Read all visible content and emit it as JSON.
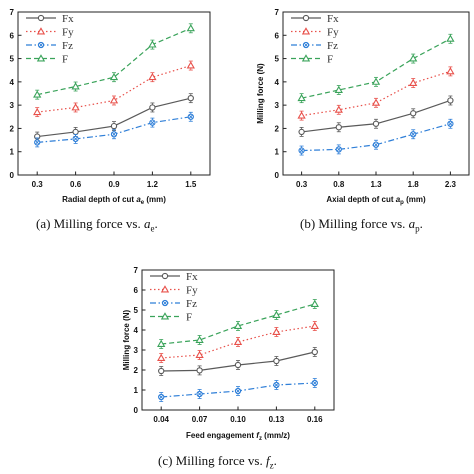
{
  "chart_data": [
    {
      "type": "line",
      "caption": {
        "prefix": "(a) Milling force vs. ",
        "var": "a",
        "sub": "e",
        "suffix": "."
      },
      "xlabel": {
        "prefix": "Radial depth of cut ",
        "var": "a",
        "sub": "e",
        "suffix": " (mm)"
      },
      "ylabel": "",
      "categories": [
        "0.3",
        "0.6",
        "0.9",
        "1.2",
        "1.5"
      ],
      "ylim": [
        0,
        7
      ],
      "yticks": [
        "0",
        "1",
        "2",
        "3",
        "4",
        "5",
        "6",
        "7"
      ],
      "legend": "top-left",
      "series": [
        {
          "name": "Fx",
          "values": [
            1.65,
            1.85,
            2.1,
            2.9,
            3.3
          ]
        },
        {
          "name": "Fy",
          "values": [
            2.7,
            2.9,
            3.2,
            4.2,
            4.7
          ]
        },
        {
          "name": "Fz",
          "values": [
            1.4,
            1.55,
            1.75,
            2.25,
            2.5
          ]
        },
        {
          "name": "F",
          "values": [
            3.45,
            3.8,
            4.2,
            5.6,
            6.3
          ]
        }
      ]
    },
    {
      "type": "line",
      "caption": {
        "prefix": "(b) Milling force vs. ",
        "var": "a",
        "sub": "p",
        "suffix": "."
      },
      "xlabel": {
        "prefix": "Axial depth of cut ",
        "var": "a",
        "sub": "p",
        "suffix": " (mm)"
      },
      "ylabel": "Milling force (N)",
      "categories": [
        "0.3",
        "0.8",
        "1.3",
        "1.8",
        "2.3"
      ],
      "ylim": [
        0,
        7
      ],
      "yticks": [
        "0",
        "1",
        "2",
        "3",
        "4",
        "5",
        "6",
        "7"
      ],
      "legend": "top-left",
      "series": [
        {
          "name": "Fx",
          "values": [
            1.85,
            2.05,
            2.2,
            2.65,
            3.2
          ]
        },
        {
          "name": "Fy",
          "values": [
            2.55,
            2.8,
            3.1,
            3.95,
            4.45
          ]
        },
        {
          "name": "Fz",
          "values": [
            1.05,
            1.1,
            1.3,
            1.75,
            2.2
          ]
        },
        {
          "name": "F",
          "values": [
            3.3,
            3.65,
            4.0,
            5.0,
            5.85
          ]
        }
      ]
    },
    {
      "type": "line",
      "caption": {
        "prefix": "(c) Milling force vs. ",
        "var": "f",
        "sub": "z",
        "suffix": "."
      },
      "xlabel": {
        "prefix": "Feed engagement ",
        "var": "f",
        "sub": "z",
        "suffix": " (mm/z)"
      },
      "ylabel": "Milling force (N)",
      "categories": [
        "0.04",
        "0.07",
        "0.10",
        "0.13",
        "0.16"
      ],
      "ylim": [
        0,
        7
      ],
      "yticks": [
        "0",
        "1",
        "2",
        "3",
        "4",
        "5",
        "6",
        "7"
      ],
      "legend": "top-left",
      "series": [
        {
          "name": "Fx",
          "values": [
            1.95,
            1.98,
            2.25,
            2.45,
            2.9
          ]
        },
        {
          "name": "Fy",
          "values": [
            2.6,
            2.75,
            3.4,
            3.9,
            4.2
          ]
        },
        {
          "name": "Fz",
          "values": [
            0.65,
            0.8,
            0.95,
            1.25,
            1.35
          ]
        },
        {
          "name": "F",
          "values": [
            3.3,
            3.5,
            4.2,
            4.75,
            5.3
          ]
        }
      ]
    }
  ],
  "series_styles": [
    {
      "name": "Fx",
      "color": "#5a5a5a",
      "dash": "solid",
      "marker": "circle"
    },
    {
      "name": "Fy",
      "color": "#e8504a",
      "dash": "dot",
      "marker": "triangle"
    },
    {
      "name": "Fz",
      "color": "#2f7fd8",
      "dash": "dashdot",
      "marker": "circle-x"
    },
    {
      "name": "F",
      "color": "#3aa35a",
      "dash": "dash",
      "marker": "triangle"
    }
  ]
}
